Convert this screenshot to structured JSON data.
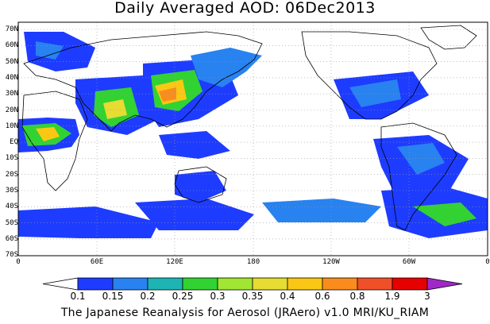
{
  "title": "Daily Averaged AOD: 06Dec2013",
  "footer": "The Japanese Reanalysis for Aerosol (JRAero) v1.0 MRI/KU_RIAM",
  "lat_labels": [
    "70N",
    "60N",
    "50N",
    "40N",
    "30N",
    "20N",
    "10N",
    "EQ",
    "10S",
    "20S",
    "30S",
    "40S",
    "50S",
    "60S",
    "70S"
  ],
  "lon_labels": [
    "0",
    "60E",
    "120E",
    "180",
    "120W",
    "60W",
    "0"
  ],
  "colorbar": {
    "levels": [
      "0.1",
      "0.15",
      "0.2",
      "0.25",
      "0.3",
      "0.35",
      "0.4",
      "0.6",
      "0.8",
      "1.9",
      "3"
    ],
    "colors": [
      "#ffffff",
      "#1e3cff",
      "#2882f0",
      "#1fb4b4",
      "#32d232",
      "#a0e632",
      "#e6dc32",
      "#fac814",
      "#fa8c1e",
      "#f05028",
      "#e60000",
      "#a028c8"
    ]
  }
}
